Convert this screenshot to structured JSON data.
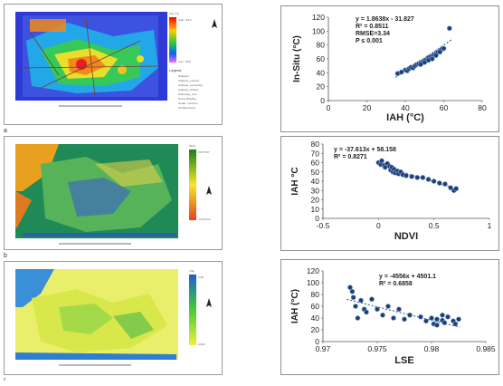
{
  "maps": [
    {
      "letter": "a",
      "legend_title": "IAH (°C)",
      "legend_high": "High : 69.3",
      "legend_low": "Low : 28.8",
      "legend_heading": "Legend",
      "legend_items": [
        "Railways",
        "Highway_primary",
        "Highway_secondary",
        "Highway_tertiary",
        "Waterway_river",
        "Power Building",
        "Nodal / Junction",
        "Noi Bai Airport"
      ]
    },
    {
      "letter": "b",
      "legend_title": "NDVI",
      "legend_high": "0.874757",
      "legend_low": "-0.221413"
    },
    {
      "letter": "c",
      "legend_title": "LSE",
      "legend_high": "0.99",
      "legend_low": "0.966"
    }
  ],
  "chart_data": [
    {
      "type": "scatter",
      "xlabel": "IAH (°C)",
      "ylabel": "In-Situ (°C)",
      "xlim": [
        0,
        80
      ],
      "ylim": [
        0,
        120
      ],
      "xticks": [
        "0",
        "20",
        "40",
        "60",
        "80"
      ],
      "yticks": [
        "0",
        "20",
        "40",
        "60",
        "80",
        "100",
        "120"
      ],
      "annotation": [
        "y = 1.8638x - 31.827",
        "R² = 0.8511",
        "RMSE=3.34",
        "P ≤ 0.001"
      ],
      "points": [
        [
          36,
          39
        ],
        [
          38,
          41
        ],
        [
          40,
          44
        ],
        [
          41,
          43
        ],
        [
          42,
          46
        ],
        [
          43,
          48
        ],
        [
          44,
          47
        ],
        [
          45,
          50
        ],
        [
          46,
          52
        ],
        [
          47,
          53
        ],
        [
          48,
          55
        ],
        [
          49,
          56
        ],
        [
          50,
          58
        ],
        [
          51,
          59
        ],
        [
          52,
          62
        ],
        [
          53,
          63
        ],
        [
          54,
          64
        ],
        [
          55,
          66
        ],
        [
          56,
          68
        ],
        [
          57,
          70
        ],
        [
          58,
          72
        ],
        [
          59,
          74
        ],
        [
          60,
          75
        ],
        [
          54,
          60
        ],
        [
          52,
          58
        ],
        [
          50,
          55
        ],
        [
          48,
          52
        ],
        [
          56,
          65
        ],
        [
          58,
          70
        ],
        [
          63,
          104
        ]
      ],
      "trend": {
        "slope": 1.8638,
        "intercept": -31.827,
        "x": [
          35,
          64
        ]
      }
    },
    {
      "type": "scatter",
      "xlabel": "NDVI",
      "ylabel": "IAH °C",
      "xlim": [
        -0.5,
        1
      ],
      "ylim": [
        0,
        80
      ],
      "xticks": [
        "-0.5",
        "0",
        "0.5",
        "1"
      ],
      "yticks": [
        "0",
        "10",
        "20",
        "30",
        "40",
        "50",
        "60",
        "70",
        "80"
      ],
      "annotation": [
        "y = -37.613x + 58.158",
        "R² = 0.8271"
      ],
      "points": [
        [
          0.0,
          60
        ],
        [
          0.02,
          58
        ],
        [
          0.03,
          62
        ],
        [
          0.05,
          57
        ],
        [
          0.06,
          55
        ],
        [
          0.08,
          59
        ],
        [
          0.1,
          56
        ],
        [
          0.11,
          52
        ],
        [
          0.12,
          55
        ],
        [
          0.13,
          50
        ],
        [
          0.14,
          53
        ],
        [
          0.15,
          49
        ],
        [
          0.17,
          51
        ],
        [
          0.18,
          48
        ],
        [
          0.2,
          50
        ],
        [
          0.22,
          47
        ],
        [
          0.25,
          46
        ],
        [
          0.3,
          45
        ],
        [
          0.35,
          44
        ],
        [
          0.4,
          44
        ],
        [
          0.45,
          42
        ],
        [
          0.5,
          40
        ],
        [
          0.55,
          38
        ],
        [
          0.6,
          37
        ],
        [
          0.65,
          33
        ],
        [
          0.68,
          30
        ],
        [
          0.7,
          32
        ]
      ],
      "trend": {
        "slope": -37.613,
        "intercept": 58.158,
        "x": [
          0,
          0.72
        ]
      }
    },
    {
      "type": "scatter",
      "xlabel": "LSE",
      "ylabel": "IAH (°C)",
      "xlim": [
        0.97,
        0.985
      ],
      "ylim": [
        0,
        120
      ],
      "xticks": [
        "0.97",
        "0.975",
        "0.98",
        "0.985"
      ],
      "yticks": [
        "0",
        "20",
        "40",
        "60",
        "80",
        "100",
        "120"
      ],
      "annotation": [
        "y = -4556x + 4501.1",
        "R² = 0.6858"
      ],
      "points": [
        [
          0.9725,
          92
        ],
        [
          0.9727,
          85
        ],
        [
          0.9728,
          75
        ],
        [
          0.973,
          60
        ],
        [
          0.9732,
          40
        ],
        [
          0.9735,
          70
        ],
        [
          0.9738,
          55
        ],
        [
          0.974,
          50
        ],
        [
          0.9745,
          72
        ],
        [
          0.975,
          55
        ],
        [
          0.9755,
          45
        ],
        [
          0.976,
          60
        ],
        [
          0.9765,
          40
        ],
        [
          0.977,
          55
        ],
        [
          0.9775,
          38
        ],
        [
          0.978,
          45
        ],
        [
          0.979,
          42
        ],
        [
          0.9795,
          35
        ],
        [
          0.98,
          40
        ],
        [
          0.9802,
          30
        ],
        [
          0.9805,
          38
        ],
        [
          0.981,
          36
        ],
        [
          0.9812,
          32
        ],
        [
          0.9815,
          42
        ],
        [
          0.982,
          35
        ],
        [
          0.9822,
          30
        ],
        [
          0.9825,
          38
        ],
        [
          0.9805,
          28
        ],
        [
          0.981,
          45
        ]
      ],
      "trend": {
        "slope": -4556,
        "intercept": 4501.1,
        "x": [
          0.9722,
          0.9826
        ]
      }
    }
  ]
}
